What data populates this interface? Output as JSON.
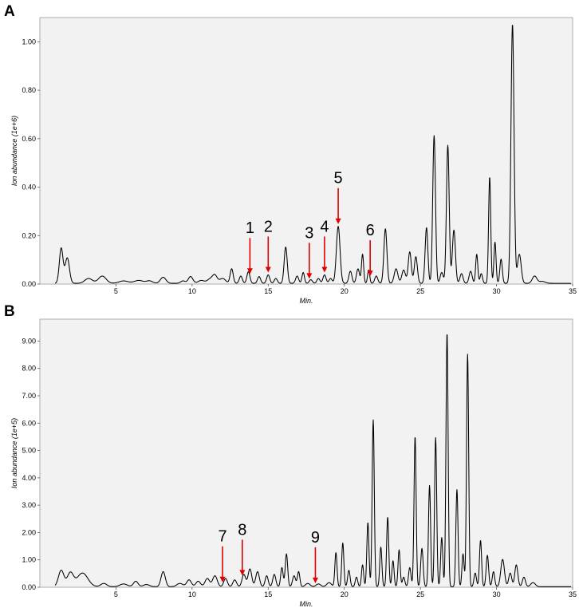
{
  "chart_data": [
    {
      "type": "line",
      "panel_label": "A",
      "xlabel": "Min.",
      "ylabel": "Ion abundance (1e+6)",
      "xlim": [
        0,
        35
      ],
      "ylim": [
        0,
        1.1
      ],
      "x_ticks": [
        5,
        10,
        15,
        20,
        25,
        30,
        35
      ],
      "y_ticks": [
        0.0,
        0.2,
        0.4,
        0.6,
        0.8,
        1.0
      ],
      "y_tick_labels": [
        "0.00",
        "0.20",
        "0.40",
        "0.60",
        "0.80",
        "1.00"
      ],
      "grid": false,
      "background": "#f2f2f2",
      "baseline": 0.003,
      "peaks": [
        [
          1.4,
          0.145,
          0.12
        ],
        [
          1.8,
          0.105,
          0.14
        ],
        [
          3.2,
          0.02,
          0.25
        ],
        [
          4.1,
          0.03,
          0.25
        ],
        [
          5.5,
          0.01,
          0.3
        ],
        [
          6.5,
          0.012,
          0.3
        ],
        [
          7.2,
          0.01,
          0.2
        ],
        [
          8.1,
          0.025,
          0.18
        ],
        [
          9.4,
          0.01,
          0.15
        ],
        [
          9.9,
          0.028,
          0.15
        ],
        [
          10.6,
          0.012,
          0.2
        ],
        [
          11.2,
          0.018,
          0.2
        ],
        [
          11.5,
          0.03,
          0.15
        ],
        [
          12.0,
          0.02,
          0.2
        ],
        [
          12.6,
          0.06,
          0.1
        ],
        [
          13.2,
          0.03,
          0.1
        ],
        [
          13.7,
          0.048,
          0.1
        ],
        [
          14.4,
          0.028,
          0.1
        ],
        [
          15.0,
          0.035,
          0.1
        ],
        [
          15.5,
          0.02,
          0.1
        ],
        [
          16.15,
          0.15,
          0.1
        ],
        [
          16.9,
          0.03,
          0.1
        ],
        [
          17.3,
          0.045,
          0.08
        ],
        [
          17.8,
          0.015,
          0.1
        ],
        [
          18.3,
          0.02,
          0.1
        ],
        [
          18.7,
          0.035,
          0.1
        ],
        [
          19.1,
          0.02,
          0.1
        ],
        [
          19.6,
          0.235,
          0.12
        ],
        [
          20.4,
          0.05,
          0.1
        ],
        [
          20.9,
          0.06,
          0.1
        ],
        [
          21.2,
          0.12,
          0.07
        ],
        [
          21.6,
          0.055,
          0.07
        ],
        [
          22.1,
          0.03,
          0.1
        ],
        [
          22.7,
          0.225,
          0.1
        ],
        [
          23.4,
          0.06,
          0.12
        ],
        [
          23.9,
          0.055,
          0.12
        ],
        [
          24.3,
          0.13,
          0.1
        ],
        [
          24.7,
          0.11,
          0.1
        ],
        [
          25.4,
          0.23,
          0.09
        ],
        [
          25.9,
          0.61,
          0.09
        ],
        [
          26.4,
          0.045,
          0.1
        ],
        [
          26.8,
          0.57,
          0.09
        ],
        [
          27.2,
          0.22,
          0.1
        ],
        [
          27.7,
          0.04,
          0.1
        ],
        [
          28.3,
          0.05,
          0.1
        ],
        [
          28.7,
          0.12,
          0.07
        ],
        [
          29.0,
          0.04,
          0.08
        ],
        [
          29.55,
          0.44,
          0.07
        ],
        [
          29.9,
          0.17,
          0.07
        ],
        [
          30.3,
          0.1,
          0.08
        ],
        [
          31.05,
          1.07,
          0.1
        ],
        [
          31.5,
          0.12,
          0.12
        ],
        [
          32.5,
          0.03,
          0.15
        ],
        [
          33.0,
          0.008,
          0.2
        ]
      ],
      "annotations": [
        {
          "label": "1",
          "x": 13.8,
          "y": 0.05
        },
        {
          "label": "2",
          "x": 15.0,
          "y": 0.035
        },
        {
          "label": "3",
          "x": 17.7,
          "y": 0.015
        },
        {
          "label": "4",
          "x": 18.7,
          "y": 0.035
        },
        {
          "label": "5",
          "x": 19.6,
          "y": 0.235
        },
        {
          "label": "6",
          "x": 21.7,
          "y": 0.055
        }
      ]
    },
    {
      "type": "line",
      "panel_label": "B",
      "xlabel": "Min.",
      "ylabel": "Ion abundance (1e+5)",
      "xlim": [
        0,
        35
      ],
      "ylim": [
        0,
        9.8
      ],
      "x_ticks": [
        5,
        10,
        15,
        20,
        25,
        30,
        35
      ],
      "y_ticks": [
        0,
        1,
        2,
        3,
        4,
        5,
        6,
        7,
        8,
        9
      ],
      "y_tick_labels": [
        "0.00",
        "1.00",
        "2.00",
        "3.00",
        "4.00",
        "5.00",
        "6.00",
        "7.00",
        "8.00",
        "9.00"
      ],
      "grid": false,
      "background": "#f2f2f2",
      "baseline": 0.02,
      "peaks": [
        [
          1.4,
          0.6,
          0.18
        ],
        [
          2.0,
          0.5,
          0.2
        ],
        [
          2.8,
          0.5,
          0.35
        ],
        [
          4.2,
          0.12,
          0.2
        ],
        [
          5.5,
          0.1,
          0.25
        ],
        [
          6.3,
          0.2,
          0.15
        ],
        [
          7.0,
          0.08,
          0.2
        ],
        [
          8.1,
          0.55,
          0.14
        ],
        [
          9.2,
          0.12,
          0.2
        ],
        [
          9.8,
          0.25,
          0.15
        ],
        [
          10.4,
          0.2,
          0.15
        ],
        [
          11.0,
          0.3,
          0.15
        ],
        [
          11.5,
          0.4,
          0.15
        ],
        [
          12.2,
          0.3,
          0.12
        ],
        [
          12.8,
          0.25,
          0.12
        ],
        [
          13.4,
          0.45,
          0.12
        ],
        [
          13.8,
          0.65,
          0.12
        ],
        [
          14.3,
          0.55,
          0.12
        ],
        [
          14.9,
          0.4,
          0.1
        ],
        [
          15.4,
          0.45,
          0.1
        ],
        [
          15.9,
          0.7,
          0.08
        ],
        [
          16.2,
          1.2,
          0.08
        ],
        [
          16.7,
          0.4,
          0.1
        ],
        [
          17.0,
          0.55,
          0.08
        ],
        [
          17.6,
          0.12,
          0.15
        ],
        [
          18.3,
          0.1,
          0.15
        ],
        [
          19.0,
          0.15,
          0.15
        ],
        [
          19.45,
          1.25,
          0.07
        ],
        [
          19.9,
          1.6,
          0.07
        ],
        [
          20.3,
          0.6,
          0.08
        ],
        [
          20.8,
          0.35,
          0.08
        ],
        [
          21.2,
          0.8,
          0.07
        ],
        [
          21.55,
          2.35,
          0.07
        ],
        [
          21.9,
          6.1,
          0.07
        ],
        [
          22.4,
          1.45,
          0.07
        ],
        [
          22.85,
          2.55,
          0.07
        ],
        [
          23.2,
          0.95,
          0.07
        ],
        [
          23.6,
          1.35,
          0.07
        ],
        [
          23.9,
          0.35,
          0.08
        ],
        [
          24.3,
          0.7,
          0.08
        ],
        [
          24.65,
          5.5,
          0.07
        ],
        [
          25.1,
          1.4,
          0.08
        ],
        [
          25.6,
          3.7,
          0.07
        ],
        [
          26.0,
          5.45,
          0.07
        ],
        [
          26.4,
          1.8,
          0.07
        ],
        [
          26.75,
          9.3,
          0.07
        ],
        [
          27.4,
          3.55,
          0.07
        ],
        [
          27.8,
          1.2,
          0.07
        ],
        [
          28.1,
          8.5,
          0.07
        ],
        [
          28.6,
          0.5,
          0.08
        ],
        [
          28.95,
          1.7,
          0.07
        ],
        [
          29.4,
          1.15,
          0.08
        ],
        [
          29.8,
          0.55,
          0.08
        ],
        [
          30.4,
          1.0,
          0.12
        ],
        [
          30.9,
          0.5,
          0.1
        ],
        [
          31.3,
          0.8,
          0.1
        ],
        [
          31.8,
          0.35,
          0.1
        ],
        [
          32.4,
          0.15,
          0.15
        ]
      ],
      "annotations": [
        {
          "label": "7",
          "x": 12.0,
          "y": 0.35
        },
        {
          "label": "8",
          "x": 13.3,
          "y": 0.3
        },
        {
          "label": "9",
          "x": 18.1,
          "y": 0.12
        }
      ]
    }
  ]
}
